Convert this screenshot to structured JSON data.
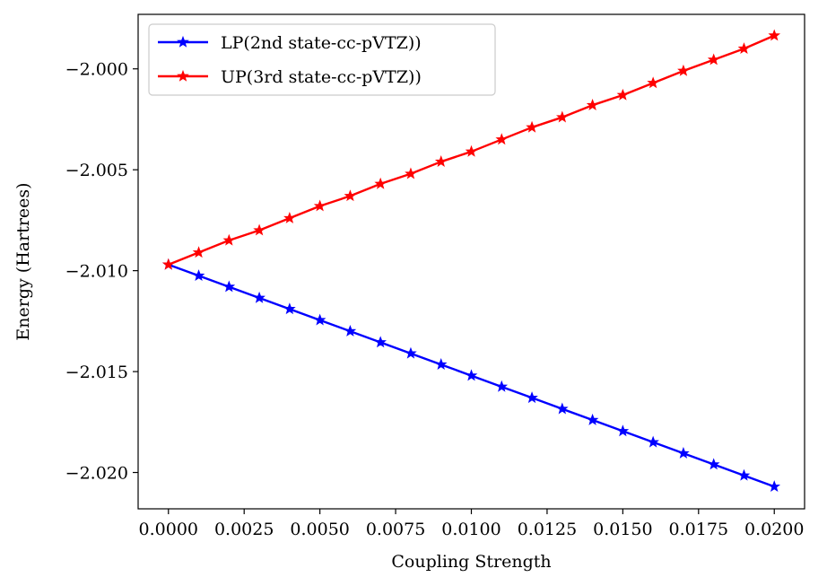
{
  "chart_data": {
    "type": "line",
    "title": "",
    "xlabel": "Coupling Strength",
    "ylabel": "Energy (Hartrees)",
    "xlim": [
      -0.001,
      0.021
    ],
    "ylim": [
      -2.0218,
      -1.9973
    ],
    "xticks": [
      0.0,
      0.0025,
      0.005,
      0.0075,
      0.01,
      0.0125,
      0.015,
      0.0175,
      0.02
    ],
    "xtick_labels": [
      "0.0000",
      "0.0025",
      "0.0050",
      "0.0075",
      "0.0100",
      "0.0125",
      "0.0150",
      "0.0175",
      "0.0200"
    ],
    "yticks": [
      -2.0,
      -2.005,
      -2.01,
      -2.015,
      -2.02
    ],
    "ytick_labels": [
      "−2.000",
      "−2.005",
      "−2.010",
      "−2.015",
      "−2.020"
    ],
    "grid": false,
    "legend_position": "top-left",
    "x": [
      0.0,
      0.001,
      0.002,
      0.003,
      0.004,
      0.005,
      0.006,
      0.007,
      0.008,
      0.009,
      0.01,
      0.011,
      0.012,
      0.013,
      0.014,
      0.015,
      0.016,
      0.017,
      0.018,
      0.019,
      0.02
    ],
    "series": [
      {
        "name": "LP(2nd state-cc-pVTZ))",
        "color": "#0000ff",
        "marker": "star",
        "values": [
          -2.0097,
          -2.01025,
          -2.0108,
          -2.01135,
          -2.0119,
          -2.01245,
          -2.013,
          -2.01355,
          -2.0141,
          -2.01465,
          -2.0152,
          -2.01575,
          -2.0163,
          -2.01685,
          -2.0174,
          -2.01795,
          -2.0185,
          -2.01905,
          -2.0196,
          -2.02015,
          -2.0207
        ]
      },
      {
        "name": "UP(3rd state-cc-pVTZ))",
        "color": "#ff0000",
        "marker": "star",
        "values": [
          -2.0097,
          -2.0091,
          -2.0085,
          -2.008,
          -2.0074,
          -2.0068,
          -2.0063,
          -2.0057,
          -2.0052,
          -2.0046,
          -2.0041,
          -2.0035,
          -2.0029,
          -2.0024,
          -2.0018,
          -2.0013,
          -2.0007,
          -2.0001,
          -1.99955,
          -1.999,
          -1.99835
        ]
      }
    ]
  }
}
